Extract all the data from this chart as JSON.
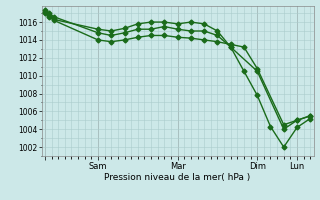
{
  "xlabel": "Pression niveau de la mer( hPa )",
  "bg_color": "#cce8e8",
  "grid_color": "#aacccc",
  "line_color": "#1a6b1a",
  "marker_color": "#1a6b1a",
  "ylim": [
    1001.0,
    1017.8
  ],
  "yticks": [
    1002,
    1004,
    1006,
    1008,
    1010,
    1012,
    1014,
    1016
  ],
  "xlim": [
    -3,
    243
  ],
  "xtick_positions": [
    0,
    48,
    120,
    192,
    228
  ],
  "xtick_labels": [
    "",
    "Sam",
    "Mar",
    "Dim",
    "Lun"
  ],
  "series": [
    {
      "x": [
        0,
        4,
        8,
        48,
        60,
        72,
        84,
        96,
        108,
        120,
        132,
        144,
        156,
        168,
        180,
        192,
        204,
        216,
        228,
        240
      ],
      "y": [
        1017.1,
        1016.7,
        1016.3,
        1015.2,
        1015.0,
        1015.3,
        1015.8,
        1016.0,
        1016.0,
        1015.8,
        1016.0,
        1015.8,
        1015.0,
        1013.2,
        1010.5,
        1007.8,
        1004.3,
        1002.0,
        1004.2,
        1005.2
      ],
      "marker": "D",
      "ms": 2.5,
      "lw": 1.0
    },
    {
      "x": [
        0,
        4,
        8,
        48,
        60,
        72,
        84,
        96,
        108,
        120,
        132,
        144,
        156,
        168,
        192,
        216,
        228,
        240
      ],
      "y": [
        1017.3,
        1017.0,
        1016.6,
        1014.8,
        1014.5,
        1014.8,
        1015.2,
        1015.2,
        1015.5,
        1015.2,
        1015.0,
        1015.0,
        1014.5,
        1013.2,
        1010.5,
        1004.0,
        1005.0,
        1005.5
      ],
      "marker": "D",
      "ms": 2.5,
      "lw": 1.0
    },
    {
      "x": [
        0,
        4,
        8,
        48,
        60,
        72,
        84,
        96,
        108,
        120,
        132,
        144,
        156,
        168,
        180,
        192,
        216,
        228,
        240
      ],
      "y": [
        1017.0,
        1016.6,
        1016.2,
        1014.0,
        1013.8,
        1014.0,
        1014.3,
        1014.5,
        1014.5,
        1014.3,
        1014.2,
        1014.0,
        1013.8,
        1013.5,
        1013.2,
        1010.8,
        1004.5,
        1005.0,
        1005.5
      ],
      "marker": "D",
      "ms": 2.5,
      "lw": 1.0
    }
  ]
}
